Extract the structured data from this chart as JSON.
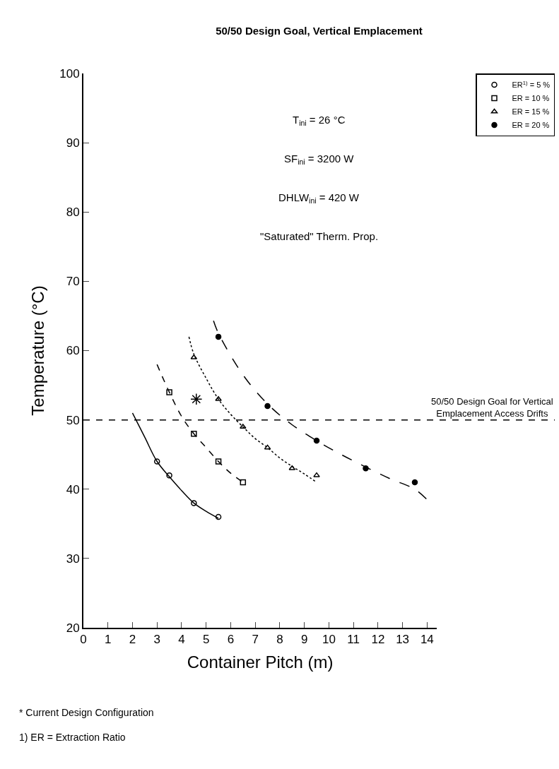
{
  "chart_data": {
    "type": "scatter",
    "title": "50/50 Design Goal, Vertical Emplacement",
    "xlabel": "Container Pitch (m)",
    "ylabel": "Temperature (°C)",
    "xlim": [
      0,
      14.4
    ],
    "ylim": [
      20,
      100
    ],
    "xticks": [
      0,
      1,
      2,
      3,
      4,
      5,
      6,
      7,
      8,
      9,
      10,
      11,
      12,
      13,
      14
    ],
    "yticks": [
      20,
      30,
      40,
      50,
      60,
      70,
      80,
      90,
      100
    ],
    "legend": "top right",
    "series": [
      {
        "name": "ER$^{1)}$ = 5 %",
        "color": "#000000",
        "marker": "circle",
        "line_style": "solid",
        "x": [
          3,
          3.5,
          4.5,
          5.5
        ],
        "values": [
          44,
          42,
          38,
          36
        ]
      },
      {
        "name": "ER = 10 %",
        "color": "#000000",
        "marker": "square",
        "line_style": "dashed",
        "x": [
          3.5,
          4.5,
          5.5,
          6.5
        ],
        "values": [
          54,
          48,
          44,
          41
        ]
      },
      {
        "name": "ER = 15 %",
        "color": "#000000",
        "marker": "triangle",
        "line_style": "dotted",
        "x": [
          4.5,
          5.5,
          6.5,
          7.5,
          8.5,
          9.5
        ],
        "values": [
          59,
          53,
          49,
          46,
          43,
          42
        ]
      },
      {
        "name": "ER = 20 %",
        "color": "#000000",
        "marker": "circle-filled",
        "line_style": "longdash",
        "x": [
          5.5,
          7.5,
          9.5,
          11.5,
          13.5
        ],
        "values": [
          62,
          52,
          47,
          43,
          41
        ]
      },
      {
        "type": "line",
        "color": "#000000",
        "line_style": "solid",
        "x": [
          2,
          2.5,
          3,
          3.5,
          4,
          4.5,
          5,
          5.5
        ],
        "values": [
          51,
          47.5,
          44,
          41.8,
          39.8,
          38,
          36.8,
          35.8
        ]
      },
      {
        "type": "line",
        "color": "#000000",
        "line_style": "dashed",
        "x": [
          3,
          3.5,
          4,
          4.5,
          5,
          5.5,
          6,
          6.5
        ],
        "values": [
          58,
          54,
          50.5,
          48,
          46,
          44,
          42.3,
          41
        ]
      },
      {
        "type": "line",
        "color": "#000000",
        "line_style": "dotted",
        "x": [
          4.3,
          4.5,
          5,
          5.5,
          6,
          6.5,
          7,
          7.5,
          8,
          8.5,
          9,
          9.5
        ],
        "values": [
          62,
          59.5,
          56,
          53,
          50.8,
          49,
          47.3,
          46,
          44.5,
          43.3,
          42.2,
          41
        ]
      },
      {
        "type": "line",
        "color": "#000000",
        "line_style": "longdash",
        "x": [
          5.3,
          5.5,
          6.5,
          7.5,
          8.5,
          9.5,
          10.5,
          11.5,
          12.5,
          13.5,
          14
        ],
        "values": [
          64.3,
          62.5,
          56.5,
          52.3,
          49.3,
          47,
          45,
          43.2,
          41.5,
          40,
          38.5
        ]
      },
      {
        "color": "#000000",
        "marker": "cross",
        "x": [
          4.6
        ],
        "values": [
          53
        ]
      }
    ],
    "ref_lines": [
      {
        "axis": "y",
        "value": 50,
        "label": "50/50 Design Goal for Vertical Emplacement Access Drifts",
        "line_style": "dashed",
        "color": "#000000"
      }
    ],
    "annotations": [
      "T$_{ini}$ = 26 °C",
      "SF$_{ini}$ = 3200 W",
      "DHLW$_{ini}$ = 420 W",
      "\"Saturated\" Therm. Prop.",
      "* Current Design Configuration",
      "1) ER = Extraction Ratio"
    ]
  }
}
